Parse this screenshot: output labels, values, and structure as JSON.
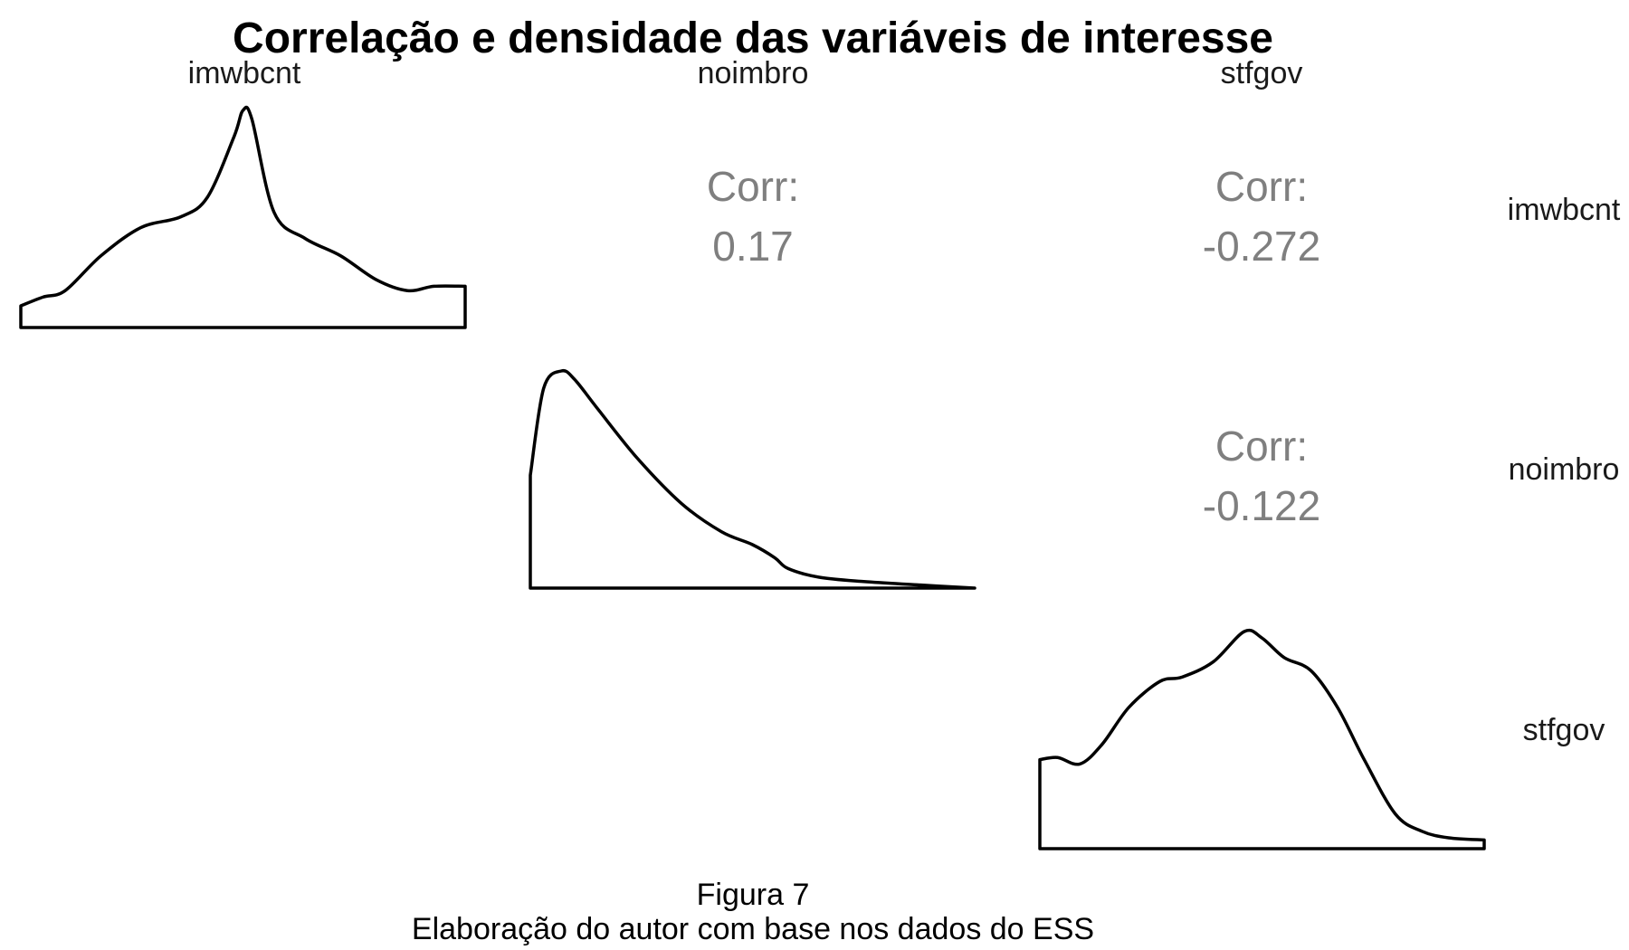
{
  "title": "Correlação e densidade das variáveis de interesse",
  "caption": {
    "line1": "Figura 7",
    "line2": "Elaboração do autor com base nos dados do ESS"
  },
  "chart_data": {
    "type": "scatterplot-matrix",
    "variables": [
      "imwbcnt",
      "noimbro",
      "stfgov"
    ],
    "column_labels": [
      "imwbcnt",
      "noimbro",
      "stfgov"
    ],
    "row_labels": [
      "imwbcnt",
      "noimbro",
      "stfgov"
    ],
    "correlations": [
      {
        "row": "imwbcnt",
        "col": "noimbro",
        "label": "Corr:",
        "value": "0.17"
      },
      {
        "row": "imwbcnt",
        "col": "stfgov",
        "label": "Corr:",
        "value": "-0.272"
      },
      {
        "row": "noimbro",
        "col": "stfgov",
        "label": "Corr:",
        "value": "-0.122"
      }
    ],
    "densities": [
      {
        "variable": "imwbcnt",
        "x": [
          0,
          0.05,
          0.1,
          0.18,
          0.27,
          0.36,
          0.42,
          0.48,
          0.5,
          0.52,
          0.57,
          0.64,
          0.72,
          0.8,
          0.87,
          0.93,
          1
        ],
        "y": [
          0.1,
          0.14,
          0.17,
          0.33,
          0.46,
          0.51,
          0.6,
          0.88,
          1,
          0.96,
          0.53,
          0.41,
          0.33,
          0.22,
          0.17,
          0.19,
          0.19
        ]
      },
      {
        "variable": "noimbro",
        "x": [
          0,
          0.03,
          0.07,
          0.1,
          0.15,
          0.24,
          0.34,
          0.43,
          0.5,
          0.55,
          0.58,
          0.65,
          0.75,
          0.87,
          1
        ],
        "y": [
          0.52,
          0.92,
          1,
          0.96,
          0.83,
          0.6,
          0.39,
          0.26,
          0.2,
          0.14,
          0.09,
          0.05,
          0.03,
          0.015,
          0
        ]
      },
      {
        "variable": "stfgov",
        "x": [
          0,
          0.04,
          0.09,
          0.14,
          0.2,
          0.27,
          0.32,
          0.39,
          0.46,
          0.5,
          0.55,
          0.61,
          0.67,
          0.73,
          0.8,
          0.86,
          0.92,
          1
        ],
        "y": [
          0.41,
          0.42,
          0.39,
          0.48,
          0.65,
          0.77,
          0.79,
          0.86,
          1,
          0.97,
          0.88,
          0.82,
          0.65,
          0.41,
          0.16,
          0.08,
          0.05,
          0.04
        ]
      }
    ]
  }
}
